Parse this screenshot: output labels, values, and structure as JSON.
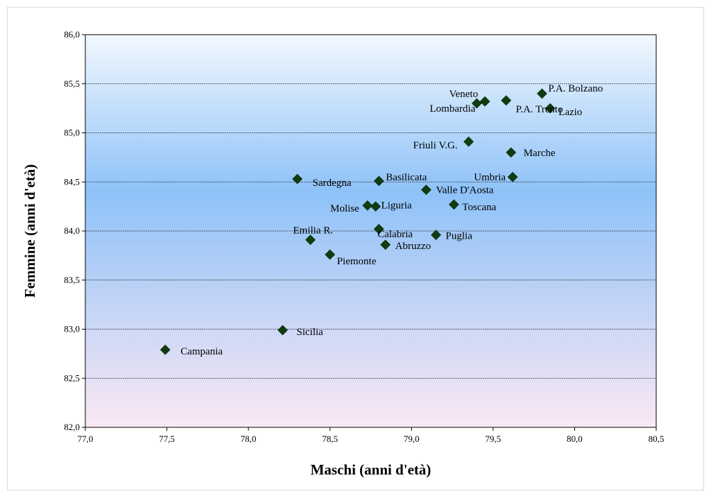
{
  "chart_data": {
    "type": "scatter",
    "title": "",
    "xlabel": "Maschi (anni d'età)",
    "ylabel": "Femmine (anni d'età)",
    "xlim": [
      77.0,
      80.5
    ],
    "ylim": [
      82.0,
      86.0
    ],
    "xticks": [
      "77,0",
      "77,5",
      "78,0",
      "78,5",
      "79,0",
      "79,5",
      "80,0",
      "80,5"
    ],
    "yticks": [
      "82,0",
      "82,5",
      "83,0",
      "83,5",
      "84,0",
      "84,5",
      "85,0",
      "85,5",
      "86,0"
    ],
    "grid": "horizontal",
    "marker": "diamond",
    "marker_color": "#0f3d0f",
    "background_gradient": [
      "#f2f8fe",
      "#8ec2f8",
      "#fbe8f4"
    ],
    "points": [
      {
        "label": "P.A. Bolzano",
        "x": 79.8,
        "y": 85.4
      },
      {
        "label": "Veneto",
        "x": 79.45,
        "y": 85.32
      },
      {
        "label": "P.A. Trento",
        "x": 79.58,
        "y": 85.33
      },
      {
        "label": "Lombardia",
        "x": 79.4,
        "y": 85.3
      },
      {
        "label": "Lazio",
        "x": 79.85,
        "y": 85.25
      },
      {
        "label": "Friuli V.G.",
        "x": 79.35,
        "y": 84.91
      },
      {
        "label": "Marche",
        "x": 79.61,
        "y": 84.8
      },
      {
        "label": "Umbria",
        "x": 79.62,
        "y": 84.55
      },
      {
        "label": "Sardegna",
        "x": 78.3,
        "y": 84.53
      },
      {
        "label": "Basilicata",
        "x": 78.8,
        "y": 84.51
      },
      {
        "label": "Valle D'Aosta",
        "x": 79.09,
        "y": 84.42
      },
      {
        "label": "Toscana",
        "x": 79.26,
        "y": 84.27
      },
      {
        "label": "Molise",
        "x": 78.73,
        "y": 84.26
      },
      {
        "label": "Liguria",
        "x": 78.78,
        "y": 84.25
      },
      {
        "label": "Calabria",
        "x": 78.8,
        "y": 84.02
      },
      {
        "label": "Puglia",
        "x": 79.15,
        "y": 83.96
      },
      {
        "label": "Emilia R.",
        "x": 78.38,
        "y": 83.91
      },
      {
        "label": "Abruzzo",
        "x": 78.84,
        "y": 83.86
      },
      {
        "label": "Piemonte",
        "x": 78.5,
        "y": 83.76
      },
      {
        "label": "Sicilia",
        "x": 78.21,
        "y": 82.99
      },
      {
        "label": "Campania",
        "x": 77.49,
        "y": 82.79
      }
    ]
  }
}
